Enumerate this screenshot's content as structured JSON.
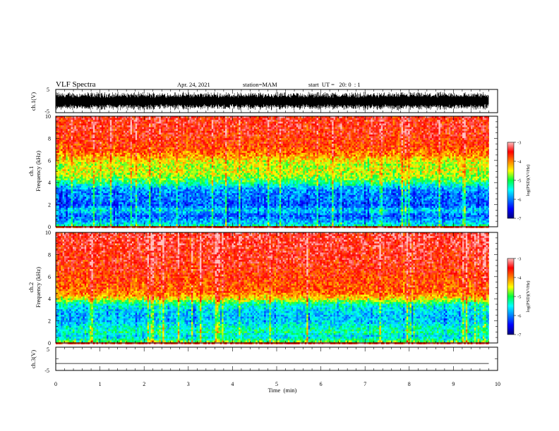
{
  "header": {
    "title": "VLF Spectra",
    "date": "Apr. 24, 2021",
    "station": "station=MAM",
    "start": "start  UT =   20: 0  : 1"
  },
  "chart_data": [
    {
      "type": "line",
      "name": "ch1-waveform",
      "ylabel": "ch.1(V)",
      "ylim": [
        -5,
        5
      ],
      "yticks": [
        "5",
        "-5"
      ],
      "xlim": [
        0,
        10
      ],
      "note": "dense broadband waveform filling roughly -4 to 4 V"
    },
    {
      "type": "heatmap",
      "name": "ch1-spectrogram",
      "ylabel_line1": "ch.1",
      "ylabel_line2": "Frequency (kHz)",
      "ylim": [
        0,
        10
      ],
      "yticks": [
        "0",
        "2",
        "4",
        "6",
        "8",
        "10"
      ],
      "xlim": [
        0,
        10
      ],
      "data_xmax": 9.8,
      "colorbar": {
        "label": "log(PSD)(V²/Hz)",
        "range": [
          -7,
          -3
        ],
        "ticks": [
          "-3",
          "-4",
          "-5",
          "-6",
          "-7"
        ]
      },
      "freq_profile_khz": [
        [
          0.0,
          -5.1
        ],
        [
          0.3,
          -5.6
        ],
        [
          0.6,
          -5.9
        ],
        [
          1.0,
          -6.1
        ],
        [
          1.5,
          -5.6
        ],
        [
          2.0,
          -6.2
        ],
        [
          2.5,
          -6.0
        ],
        [
          3.0,
          -6.0
        ],
        [
          3.5,
          -5.8
        ],
        [
          4.0,
          -5.1
        ],
        [
          4.5,
          -4.7
        ],
        [
          5.0,
          -4.5
        ],
        [
          5.5,
          -4.6
        ],
        [
          6.0,
          -4.4
        ],
        [
          6.5,
          -4.0
        ],
        [
          7.0,
          -3.8
        ],
        [
          7.5,
          -3.7
        ],
        [
          8.0,
          -3.6
        ],
        [
          8.5,
          -3.55
        ],
        [
          9.0,
          -3.5
        ],
        [
          9.5,
          -3.5
        ],
        [
          10.0,
          -3.5
        ]
      ]
    },
    {
      "type": "heatmap",
      "name": "ch2-spectrogram",
      "ylabel_line1": "ch.2",
      "ylabel_line2": "Frequency (kHz)",
      "ylim": [
        0,
        10
      ],
      "yticks": [
        "0",
        "2",
        "4",
        "6",
        "8",
        "10"
      ],
      "xlim": [
        0,
        10
      ],
      "data_xmax": 9.8,
      "colorbar": {
        "label": "log(PSD)(V²/Hz)",
        "range": [
          -7,
          -3
        ],
        "ticks": [
          "-3",
          "-4",
          "-5",
          "-6",
          "-7"
        ]
      },
      "freq_profile_khz": [
        [
          0.0,
          -4.6
        ],
        [
          0.3,
          -5.2
        ],
        [
          0.6,
          -5.6
        ],
        [
          1.0,
          -5.2
        ],
        [
          1.5,
          -5.4
        ],
        [
          2.0,
          -5.7
        ],
        [
          2.5,
          -5.7
        ],
        [
          3.0,
          -5.6
        ],
        [
          3.5,
          -5.3
        ],
        [
          4.0,
          -4.4
        ],
        [
          4.5,
          -3.9
        ],
        [
          5.0,
          -3.8
        ],
        [
          5.5,
          -3.75
        ],
        [
          6.0,
          -3.7
        ],
        [
          6.5,
          -3.6
        ],
        [
          7.0,
          -3.55
        ],
        [
          7.5,
          -3.5
        ],
        [
          8.0,
          -3.5
        ],
        [
          8.5,
          -3.45
        ],
        [
          9.0,
          -3.4
        ],
        [
          9.5,
          -3.4
        ],
        [
          10.0,
          -3.4
        ]
      ]
    },
    {
      "type": "line",
      "name": "ch3-waveform",
      "ylabel": "ch.3(V)",
      "ylim": [
        -5,
        5
      ],
      "yticks": [
        "5",
        "0",
        "-5"
      ],
      "xlim": [
        0,
        10
      ],
      "x": [
        0,
        9.8
      ],
      "y": [
        -2,
        -2
      ],
      "xlabel": "Time  (min)",
      "xticks": [
        "0",
        "1",
        "2",
        "3",
        "4",
        "5",
        "6",
        "7",
        "8",
        "9",
        "10"
      ]
    }
  ],
  "colors": {
    "colormap": [
      "#000080",
      "#0000ff",
      "#0080ff",
      "#00ffff",
      "#00ff40",
      "#ffff00",
      "#ff8000",
      "#ff0000",
      "#ffc0c0"
    ]
  }
}
